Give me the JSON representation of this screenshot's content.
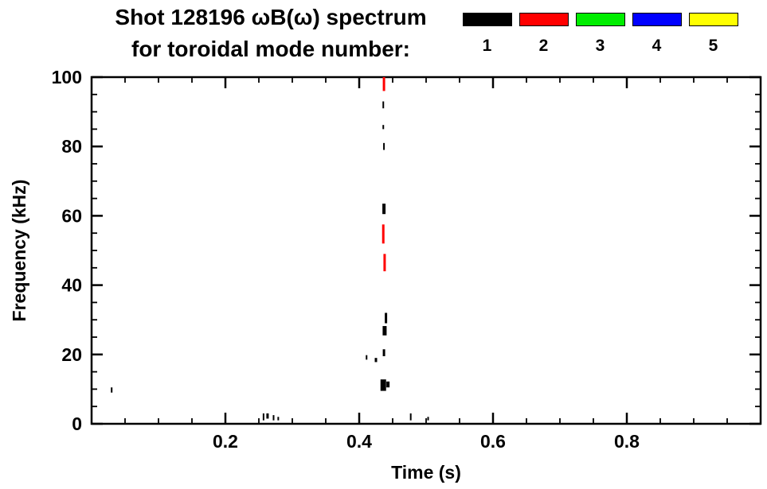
{
  "chart_data": {
    "type": "scatter",
    "title": "Shot 128196 ωB(ω) spectrum",
    "subtitle": "for toroidal mode number:",
    "xlabel": "Time (s)",
    "ylabel": "Frequency (kHz)",
    "xlim": [
      0.0,
      1.0
    ],
    "ylim": [
      0,
      100
    ],
    "xticks": [
      0.2,
      0.4,
      0.6,
      0.8
    ],
    "xtick_labels": [
      "0.2",
      "0.4",
      "0.6",
      "0.8"
    ],
    "yticks": [
      0,
      20,
      40,
      60,
      80,
      100
    ],
    "ytick_labels": [
      "0",
      "20",
      "40",
      "60",
      "80",
      "100"
    ],
    "x_minor_step": 0.05,
    "y_minor_step": 5,
    "grid": false,
    "legend_position": "top-right",
    "legend": [
      {
        "label": "1",
        "color": "#000000"
      },
      {
        "label": "2",
        "color": "#ff0000"
      },
      {
        "label": "3",
        "color": "#00ee00"
      },
      {
        "label": "4",
        "color": "#0000ff"
      },
      {
        "label": "5",
        "color": "#ffff00"
      }
    ],
    "series": [
      {
        "name": "toroidal mode 1",
        "mode": "1",
        "color": "#000000",
        "marks": [
          {
            "t": 0.03,
            "f": 9.0,
            "f2": 10.5,
            "w": 2
          },
          {
            "t": 0.257,
            "f": 1.0,
            "f2": 3.0,
            "w": 2
          },
          {
            "t": 0.263,
            "f": 1.5,
            "f2": 3.0,
            "w": 3
          },
          {
            "t": 0.272,
            "f": 1.0,
            "f2": 2.5,
            "w": 2
          },
          {
            "t": 0.279,
            "f": 1.0,
            "f2": 2.0,
            "w": 2
          },
          {
            "t": 0.411,
            "f": 18.5,
            "f2": 19.8,
            "w": 2
          },
          {
            "t": 0.425,
            "f": 17.8,
            "f2": 19.0,
            "w": 3
          },
          {
            "t": 0.436,
            "f": 9.5,
            "f2": 12.8,
            "w": 7
          },
          {
            "t": 0.443,
            "f": 10.5,
            "f2": 12.2,
            "w": 4
          },
          {
            "t": 0.437,
            "f": 19.5,
            "f2": 21.5,
            "w": 3
          },
          {
            "t": 0.438,
            "f": 25.5,
            "f2": 28.2,
            "w": 5
          },
          {
            "t": 0.44,
            "f": 29.0,
            "f2": 32.0,
            "w": 3
          },
          {
            "t": 0.437,
            "f": 60.5,
            "f2": 63.5,
            "w": 4
          },
          {
            "t": 0.437,
            "f": 79.0,
            "f2": 81.0,
            "w": 2
          },
          {
            "t": 0.436,
            "f": 85.0,
            "f2": 86.2,
            "w": 2
          },
          {
            "t": 0.436,
            "f": 91.0,
            "f2": 93.0,
            "w": 2
          },
          {
            "t": 0.477,
            "f": 1.0,
            "f2": 3.0,
            "w": 2
          },
          {
            "t": 0.503,
            "f": 1.0,
            "f2": 2.0,
            "w": 2
          }
        ]
      },
      {
        "name": "toroidal mode 2",
        "mode": "2",
        "color": "#ff0000",
        "marks": [
          {
            "t": 0.437,
            "f": 96.0,
            "f2": 100.0,
            "w": 3
          },
          {
            "t": 0.436,
            "f": 52.0,
            "f2": 57.5,
            "w": 3
          },
          {
            "t": 0.438,
            "f": 44.0,
            "f2": 49.0,
            "w": 3
          }
        ]
      },
      {
        "name": "toroidal mode 3",
        "mode": "3",
        "color": "#00ee00",
        "marks": []
      },
      {
        "name": "toroidal mode 4",
        "mode": "4",
        "color": "#0000ff",
        "marks": []
      },
      {
        "name": "toroidal mode 5",
        "mode": "5",
        "color": "#ffff00",
        "marks": []
      }
    ]
  }
}
